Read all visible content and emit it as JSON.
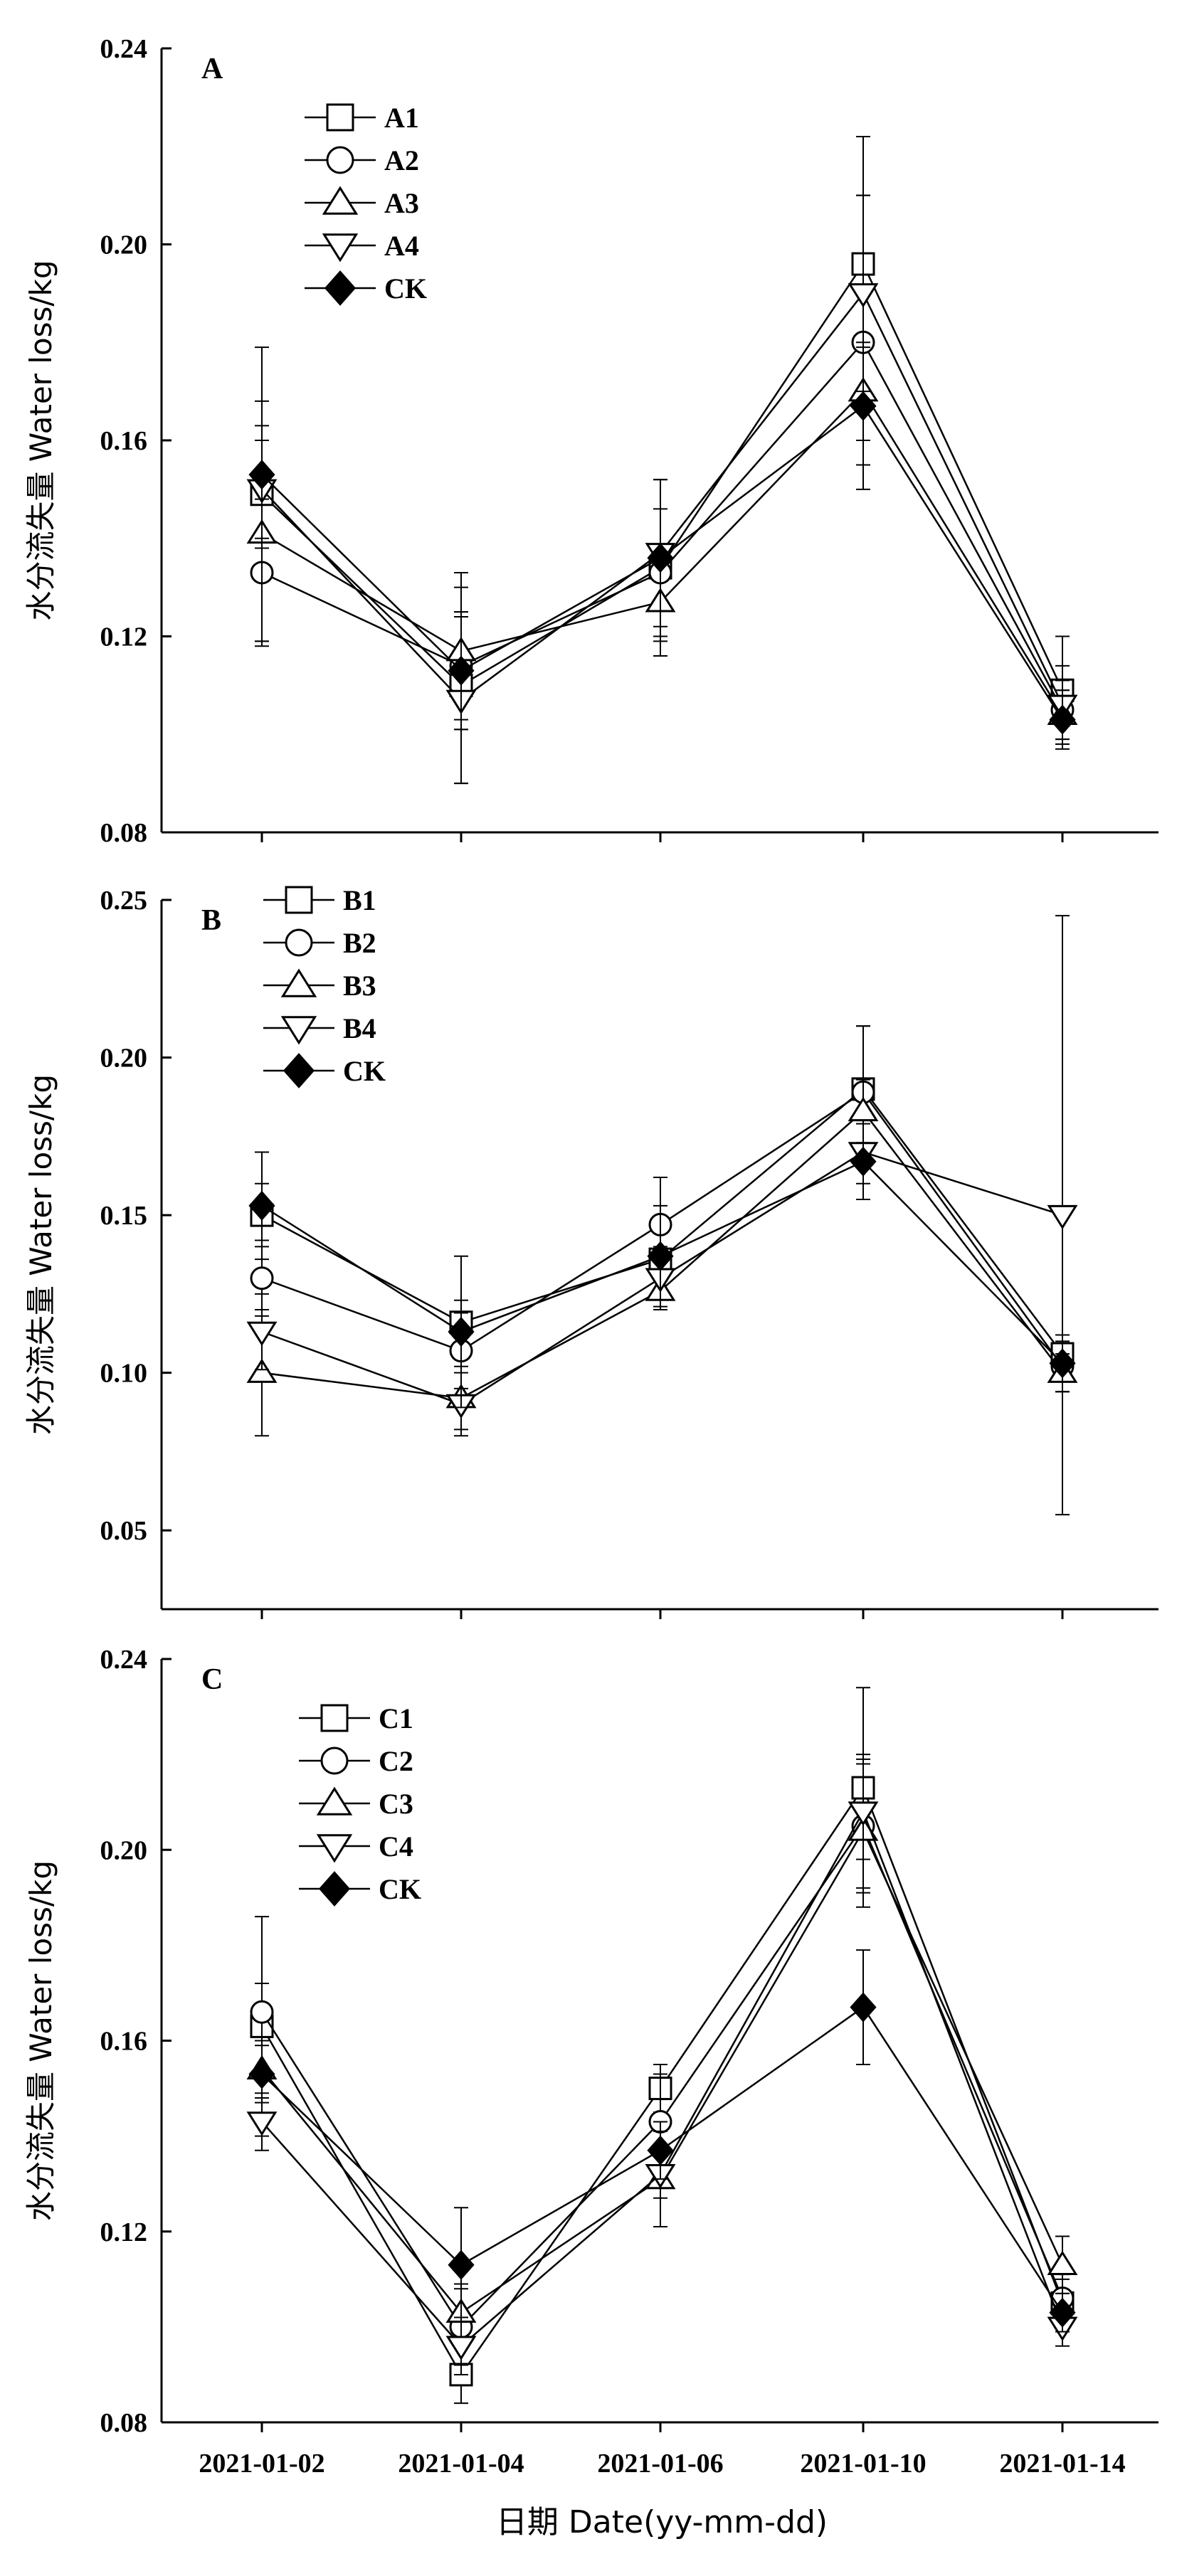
{
  "chart_data": [
    {
      "type": "line",
      "panel_label": "A",
      "ylabel": "水分流失量 Water loss/kg",
      "ylim": [
        0.08,
        0.24
      ],
      "yticks": [
        "0.08",
        "0.12",
        "0.16",
        "0.20",
        "0.24"
      ],
      "categories": [
        "2021-01-02",
        "2021-01-04",
        "2021-01-06",
        "2021-01-10",
        "2021-01-14"
      ],
      "legend_position": "top-left",
      "series": [
        {
          "name": "A1",
          "marker": "square",
          "values": [
            0.149,
            0.11,
            0.134,
            0.196,
            0.109
          ],
          "errors": [
            0.03,
            0.02,
            0.018,
            0.026,
            0.011
          ]
        },
        {
          "name": "A2",
          "marker": "circle",
          "values": [
            0.133,
            0.114,
            0.133,
            0.18,
            0.105
          ],
          "errors": [
            0.015,
            0.011,
            0.013,
            0.03,
            0.006
          ]
        },
        {
          "name": "A3",
          "marker": "triangle-up",
          "values": [
            0.141,
            0.117,
            0.127,
            0.17,
            0.104
          ],
          "errors": [
            0.022,
            0.016,
            0.008,
            0.01,
            0.005
          ]
        },
        {
          "name": "A4",
          "marker": "triangle-down",
          "values": [
            0.15,
            0.107,
            0.137,
            0.19,
            0.106
          ],
          "errors": [
            0.01,
            0.017,
            0.015,
            0.02,
            0.008
          ]
        },
        {
          "name": "CK",
          "marker": "diamond",
          "values": [
            0.153,
            0.113,
            0.136,
            0.167,
            0.103
          ],
          "errors": [
            0.015,
            0.012,
            0.016,
            0.012,
            0.006
          ]
        }
      ]
    },
    {
      "type": "line",
      "panel_label": "B",
      "ylabel": "水分流失量 Water loss/kg",
      "ylim": [
        0.025,
        0.25
      ],
      "yticks": [
        "0.05",
        "0.10",
        "0.15",
        "0.20",
        "0.25"
      ],
      "categories": [
        "2021-01-02",
        "2021-01-04",
        "2021-01-06",
        "2021-01-10",
        "2021-01-14"
      ],
      "legend_position": "top-left",
      "series": [
        {
          "name": "B1",
          "marker": "square",
          "values": [
            0.15,
            0.116,
            0.136,
            0.19,
            0.106
          ],
          "errors": [
            0.01,
            0.007,
            0.012,
            0.02,
            0.006
          ]
        },
        {
          "name": "B2",
          "marker": "circle",
          "values": [
            0.13,
            0.107,
            0.147,
            0.189,
            0.102
          ],
          "errors": [
            0.012,
            0.012,
            0.015,
            0.021,
            0.008
          ]
        },
        {
          "name": "B3",
          "marker": "triangle-up",
          "values": [
            0.1,
            0.092,
            0.126,
            0.183,
            0.1
          ],
          "errors": [
            0.02,
            0.01,
            0.006,
            0.01,
            0.006
          ]
        },
        {
          "name": "B4",
          "marker": "triangle-down",
          "values": [
            0.113,
            0.09,
            0.13,
            0.17,
            0.15
          ],
          "errors": [
            0.012,
            0.01,
            0.01,
            0.01,
            0.095
          ]
        },
        {
          "name": "CK",
          "marker": "diamond",
          "values": [
            0.153,
            0.113,
            0.137,
            0.167,
            0.103
          ],
          "errors": [
            0.017,
            0.024,
            0.016,
            0.012,
            0.009
          ]
        }
      ]
    },
    {
      "type": "line",
      "panel_label": "C",
      "ylabel": "水分流失量 Water loss/kg",
      "ylim": [
        0.08,
        0.24
      ],
      "yticks": [
        "0.08",
        "0.12",
        "0.16",
        "0.20",
        "0.24"
      ],
      "categories": [
        "2021-01-02",
        "2021-01-04",
        "2021-01-06",
        "2021-01-10",
        "2021-01-14"
      ],
      "xlabel": "日期 Date(yy-mm-dd)",
      "legend_position": "top-left",
      "series": [
        {
          "name": "C1",
          "marker": "square",
          "values": [
            0.163,
            0.09,
            0.15,
            0.213,
            0.105
          ],
          "errors": [
            0.023,
            0.006,
            0.005,
            0.021,
            0.005
          ]
        },
        {
          "name": "C2",
          "marker": "circle",
          "values": [
            0.166,
            0.1,
            0.143,
            0.205,
            0.106
          ],
          "errors": [
            0.006,
            0.008,
            0.01,
            0.014,
            0.005
          ]
        },
        {
          "name": "C3",
          "marker": "triangle-up",
          "values": [
            0.154,
            0.103,
            0.131,
            0.204,
            0.113
          ],
          "errors": [
            0.006,
            0.006,
            0.01,
            0.016,
            0.006
          ]
        },
        {
          "name": "C4",
          "marker": "triangle-down",
          "values": [
            0.143,
            0.096,
            0.132,
            0.208,
            0.1
          ],
          "errors": [
            0.006,
            0.006,
            0.005,
            0.01,
            0.004
          ]
        },
        {
          "name": "CK",
          "marker": "diamond",
          "values": [
            0.153,
            0.113,
            0.137,
            0.167,
            0.103
          ],
          "errors": [
            0.006,
            0.012,
            0.006,
            0.012,
            0.004
          ]
        }
      ]
    }
  ]
}
